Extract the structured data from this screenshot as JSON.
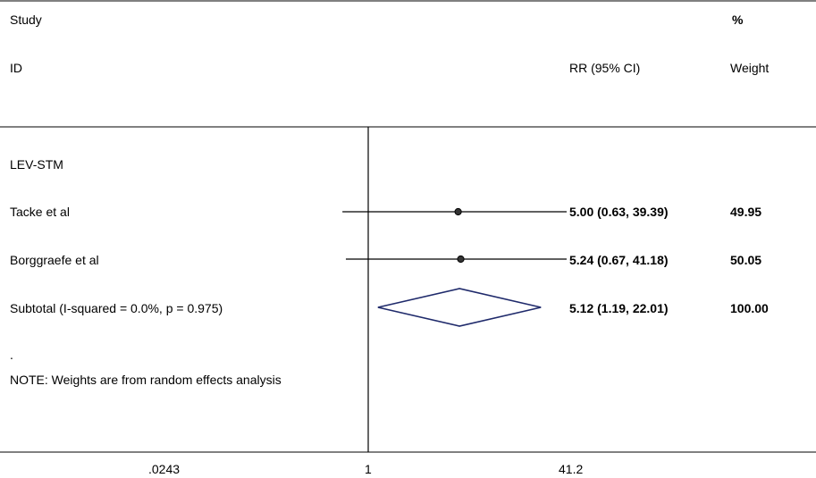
{
  "chart_data": {
    "type": "forest",
    "headers": {
      "study_line1": "Study",
      "study_line2": "ID",
      "effect": "RR (95% CI)",
      "weight_line1": "%",
      "weight_line2": "Weight"
    },
    "group_label": "LEV-STM",
    "studies": [
      {
        "label": "Tacke et al",
        "rr": 5.0,
        "lower": 0.63,
        "upper": 39.39,
        "ci_text": "5.00 (0.63, 39.39)",
        "weight_text": "49.95"
      },
      {
        "label": "Borggraefe et al",
        "rr": 5.24,
        "lower": 0.67,
        "upper": 41.18,
        "ci_text": "5.24 (0.67, 41.18)",
        "weight_text": "50.05"
      }
    ],
    "subtotal": {
      "label": "Subtotal  (I-squared = 0.0%, p = 0.975)",
      "rr": 5.12,
      "lower": 1.19,
      "upper": 22.01,
      "ci_text": "5.12 (1.19, 22.01)",
      "weight_text": "100.00"
    },
    "dot_text": ".",
    "note": "NOTE: Weights are from random effects analysis",
    "x_scale": "log",
    "x_ticks": [
      {
        "value": 0.0243,
        "label": ".0243"
      },
      {
        "value": 1,
        "label": "1"
      },
      {
        "value": 41.2,
        "label": "41.2"
      }
    ],
    "null_line": 1,
    "colors": {
      "line": "#000000",
      "diamond": "#1f2a6b"
    }
  }
}
